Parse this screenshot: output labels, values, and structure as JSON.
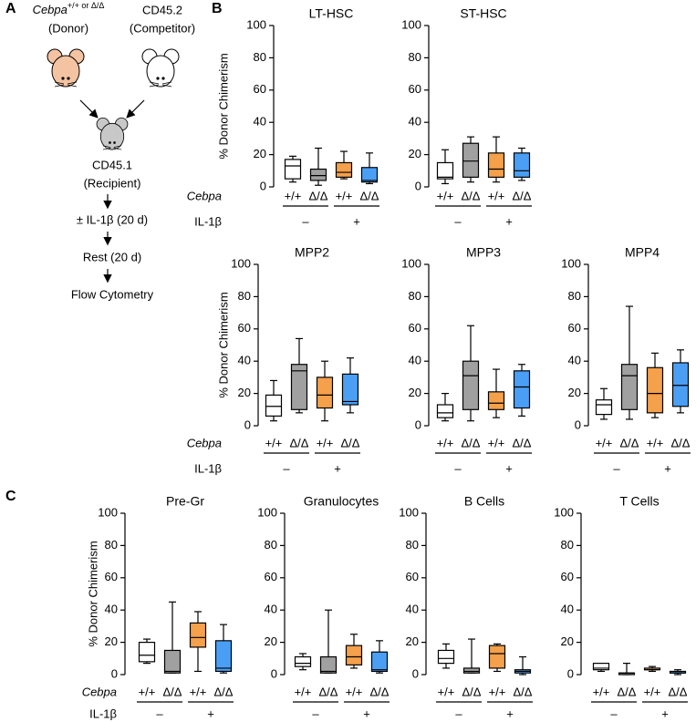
{
  "panel_labels": [
    "A",
    "B",
    "C"
  ],
  "diagram": {
    "donor_gene": "Cebpa",
    "donor_genotype": "+/+ or Δ/Δ",
    "donor_role": "(Donor)",
    "competitor": "CD45.2",
    "competitor_role": "(Competitor)",
    "recipient": "CD45.1",
    "recipient_role": "(Recipient)",
    "steps": [
      "± IL-1β (20 d)",
      "Rest (20 d)",
      "Flow Cytometry"
    ]
  },
  "chart_data": [
    {
      "type": "box",
      "title": "LT-HSC",
      "ylabel": "% Donor Chimerism",
      "row_labels": [
        "Cebpa",
        "IL-1β"
      ],
      "categories": [
        "+/+",
        "Δ/Δ",
        "+/+",
        "Δ/Δ"
      ],
      "groups": [
        "–",
        "+"
      ],
      "ylim": [
        0,
        100
      ],
      "yticks": [
        0,
        20,
        40,
        60,
        80,
        100
      ],
      "boxes": [
        {
          "color": "#ffffff",
          "min": 3,
          "q1": 5,
          "median": 13,
          "q3": 17,
          "max": 19
        },
        {
          "color": "#a0a0a0",
          "min": 1,
          "q1": 4,
          "median": 7,
          "q3": 11,
          "max": 24
        },
        {
          "color": "#f5a04a",
          "min": 5,
          "q1": 6,
          "median": 9,
          "q3": 15,
          "max": 22
        },
        {
          "color": "#4a9ff5",
          "min": 2,
          "q1": 3,
          "median": 4,
          "q3": 12,
          "max": 21
        }
      ]
    },
    {
      "type": "box",
      "title": "ST-HSC",
      "categories": [
        "+/+",
        "Δ/Δ",
        "+/+",
        "Δ/Δ"
      ],
      "groups": [
        "–",
        "+"
      ],
      "ylim": [
        0,
        100
      ],
      "yticks": [
        0,
        20,
        40,
        60,
        80,
        100
      ],
      "boxes": [
        {
          "color": "#ffffff",
          "min": 2,
          "q1": 5,
          "median": 6,
          "q3": 15,
          "max": 23
        },
        {
          "color": "#a0a0a0",
          "min": 3,
          "q1": 6,
          "median": 16,
          "q3": 27,
          "max": 31
        },
        {
          "color": "#f5a04a",
          "min": 3,
          "q1": 6,
          "median": 11,
          "q3": 21,
          "max": 31
        },
        {
          "color": "#4a9ff5",
          "min": 4,
          "q1": 6,
          "median": 10,
          "q3": 21,
          "max": 24
        }
      ]
    },
    {
      "type": "box",
      "title": "MPP2",
      "ylabel": "% Donor Chimerism",
      "row_labels": [
        "Cebpa",
        "IL-1β"
      ],
      "categories": [
        "+/+",
        "Δ/Δ",
        "+/+",
        "Δ/Δ"
      ],
      "groups": [
        "–",
        "+"
      ],
      "ylim": [
        0,
        100
      ],
      "yticks": [
        0,
        20,
        40,
        60,
        80,
        100
      ],
      "boxes": [
        {
          "color": "#ffffff",
          "min": 3,
          "q1": 6,
          "median": 12,
          "q3": 19,
          "max": 28
        },
        {
          "color": "#a0a0a0",
          "min": 8,
          "q1": 10,
          "median": 34,
          "q3": 38,
          "max": 54
        },
        {
          "color": "#f5a04a",
          "min": 3,
          "q1": 11,
          "median": 19,
          "q3": 30,
          "max": 40
        },
        {
          "color": "#4a9ff5",
          "min": 8,
          "q1": 13,
          "median": 15,
          "q3": 32,
          "max": 42
        }
      ]
    },
    {
      "type": "box",
      "title": "MPP3",
      "categories": [
        "+/+",
        "Δ/Δ",
        "+/+",
        "Δ/Δ"
      ],
      "groups": [
        "–",
        "+"
      ],
      "ylim": [
        0,
        100
      ],
      "yticks": [
        0,
        20,
        40,
        60,
        80,
        100
      ],
      "boxes": [
        {
          "color": "#ffffff",
          "min": 3,
          "q1": 5,
          "median": 8,
          "q3": 13,
          "max": 20
        },
        {
          "color": "#a0a0a0",
          "min": 3,
          "q1": 10,
          "median": 31,
          "q3": 40,
          "max": 62
        },
        {
          "color": "#f5a04a",
          "min": 5,
          "q1": 10,
          "median": 14,
          "q3": 21,
          "max": 35
        },
        {
          "color": "#4a9ff5",
          "min": 6,
          "q1": 11,
          "median": 24,
          "q3": 34,
          "max": 38
        }
      ]
    },
    {
      "type": "box",
      "title": "MPP4",
      "categories": [
        "+/+",
        "Δ/Δ",
        "+/+",
        "Δ/Δ"
      ],
      "groups": [
        "–",
        "+"
      ],
      "ylim": [
        0,
        100
      ],
      "yticks": [
        0,
        20,
        40,
        60,
        80,
        100
      ],
      "boxes": [
        {
          "color": "#ffffff",
          "min": 4,
          "q1": 7,
          "median": 13,
          "q3": 16,
          "max": 23
        },
        {
          "color": "#a0a0a0",
          "min": 4,
          "q1": 10,
          "median": 31,
          "q3": 38,
          "max": 74
        },
        {
          "color": "#f5a04a",
          "min": 5,
          "q1": 8,
          "median": 20,
          "q3": 36,
          "max": 45
        },
        {
          "color": "#4a9ff5",
          "min": 8,
          "q1": 12,
          "median": 25,
          "q3": 39,
          "max": 47
        }
      ]
    },
    {
      "type": "box",
      "title": "Pre-Gr",
      "ylabel": "% Donor Chimerism",
      "row_labels": [
        "Cebpa",
        "IL-1β"
      ],
      "categories": [
        "+/+",
        "Δ/Δ",
        "+/+",
        "Δ/Δ"
      ],
      "groups": [
        "–",
        "+"
      ],
      "ylim": [
        0,
        100
      ],
      "yticks": [
        0,
        20,
        40,
        60,
        80,
        100
      ],
      "boxes": [
        {
          "color": "#ffffff",
          "min": 7,
          "q1": 8,
          "median": 12,
          "q3": 20,
          "max": 22
        },
        {
          "color": "#a0a0a0",
          "min": 1,
          "q1": 1,
          "median": 2,
          "q3": 15,
          "max": 45
        },
        {
          "color": "#f5a04a",
          "min": 2,
          "q1": 17,
          "median": 23,
          "q3": 32,
          "max": 39
        },
        {
          "color": "#4a9ff5",
          "min": 1,
          "q1": 2,
          "median": 4,
          "q3": 21,
          "max": 31
        }
      ]
    },
    {
      "type": "box",
      "title": "Granulocytes",
      "categories": [
        "+/+",
        "Δ/Δ",
        "+/+",
        "Δ/Δ"
      ],
      "groups": [
        "–",
        "+"
      ],
      "ylim": [
        0,
        100
      ],
      "yticks": [
        0,
        20,
        40,
        60,
        80,
        100
      ],
      "boxes": [
        {
          "color": "#ffffff",
          "min": 3,
          "q1": 5,
          "median": 7,
          "q3": 11,
          "max": 13
        },
        {
          "color": "#a0a0a0",
          "min": 1,
          "q1": 1,
          "median": 2,
          "q3": 11,
          "max": 40
        },
        {
          "color": "#f5a04a",
          "min": 4,
          "q1": 6,
          "median": 11,
          "q3": 18,
          "max": 25
        },
        {
          "color": "#4a9ff5",
          "min": 1,
          "q1": 2,
          "median": 3,
          "q3": 14,
          "max": 21
        }
      ]
    },
    {
      "type": "box",
      "title": "B Cells",
      "categories": [
        "+/+",
        "Δ/Δ",
        "+/+",
        "Δ/Δ"
      ],
      "groups": [
        "–",
        "+"
      ],
      "ylim": [
        0,
        100
      ],
      "yticks": [
        0,
        20,
        40,
        60,
        80,
        100
      ],
      "boxes": [
        {
          "color": "#ffffff",
          "min": 4,
          "q1": 7,
          "median": 10,
          "q3": 15,
          "max": 19
        },
        {
          "color": "#a0a0a0",
          "min": 1,
          "q1": 1,
          "median": 2,
          "q3": 4,
          "max": 22
        },
        {
          "color": "#f5a04a",
          "min": 2,
          "q1": 4,
          "median": 13,
          "q3": 18,
          "max": 19
        },
        {
          "color": "#4a9ff5",
          "min": 0,
          "q1": 1,
          "median": 2,
          "q3": 3,
          "max": 11
        }
      ]
    },
    {
      "type": "box",
      "title": "T Cells",
      "categories": [
        "+/+",
        "Δ/Δ",
        "+/+",
        "Δ/Δ"
      ],
      "groups": [
        "–",
        "+"
      ],
      "ylim": [
        0,
        100
      ],
      "yticks": [
        0,
        20,
        40,
        60,
        80,
        100
      ],
      "boxes": [
        {
          "color": "#ffffff",
          "min": 2,
          "q1": 3,
          "median": 4,
          "q3": 7,
          "max": 7
        },
        {
          "color": "#a0a0a0",
          "min": 0,
          "q1": 0,
          "median": 1,
          "q3": 1,
          "max": 7
        },
        {
          "color": "#f5a04a",
          "min": 2,
          "q1": 3,
          "median": 3,
          "q3": 4,
          "max": 5
        },
        {
          "color": "#4a9ff5",
          "min": 0,
          "q1": 1,
          "median": 1,
          "q3": 2,
          "max": 3
        }
      ]
    }
  ]
}
